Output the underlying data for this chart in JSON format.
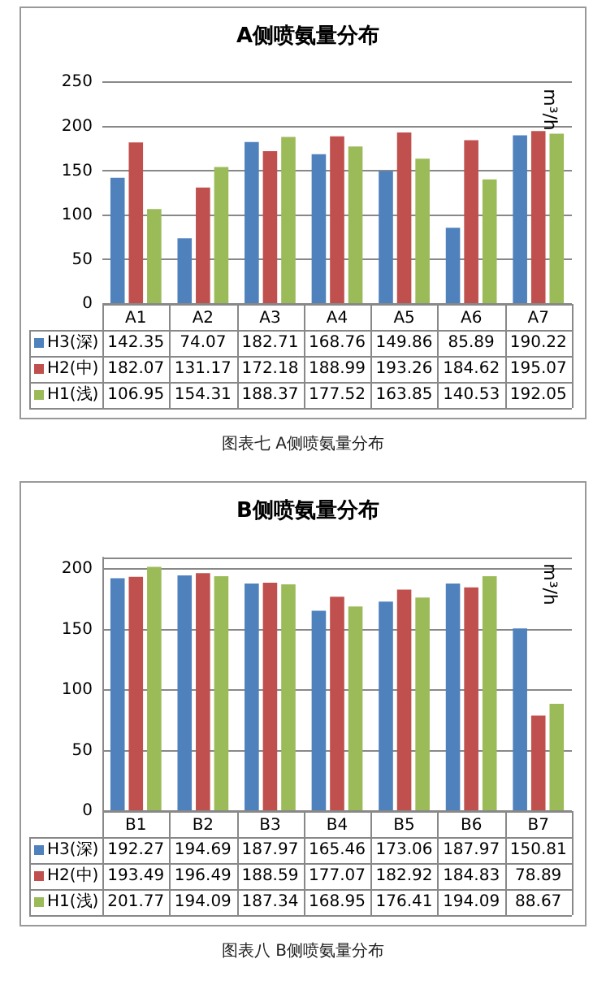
{
  "chart_data": [
    {
      "type": "bar",
      "title": "A侧喷氨量分布",
      "ylabel": "m³/h",
      "categories": [
        "A1",
        "A2",
        "A3",
        "A4",
        "A5",
        "A6",
        "A7"
      ],
      "series": [
        {
          "name": "H3(深)",
          "color": "#4f81bd",
          "values": [
            142.35,
            74.07,
            182.71,
            168.76,
            149.86,
            85.89,
            190.22
          ]
        },
        {
          "name": "H2(中)",
          "color": "#c0504d",
          "values": [
            182.07,
            131.17,
            172.18,
            188.99,
            193.26,
            184.62,
            195.07
          ]
        },
        {
          "name": "H1(浅)",
          "color": "#9bbb59",
          "values": [
            106.95,
            154.31,
            188.37,
            177.52,
            163.85,
            140.53,
            192.05
          ]
        }
      ],
      "ylim": [
        0,
        250
      ],
      "yticks": [
        0,
        50,
        100,
        150,
        200,
        250
      ],
      "grid": "y",
      "legend": "bottom",
      "data_labels": true,
      "annotations": [
        "图表七 A侧喷氨量分布"
      ]
    },
    {
      "type": "bar",
      "title": "B侧喷氨量分布",
      "ylabel": "m³/h",
      "categories": [
        "B1",
        "B2",
        "B3",
        "B4",
        "B5",
        "B6",
        "B7"
      ],
      "series": [
        {
          "name": "H3(深)",
          "color": "#4f81bd",
          "values": [
            192.27,
            194.69,
            187.97,
            165.46,
            173.06,
            187.97,
            150.81
          ]
        },
        {
          "name": "H2(中)",
          "color": "#c0504d",
          "values": [
            193.49,
            196.49,
            188.59,
            177.07,
            182.92,
            184.83,
            78.89
          ]
        },
        {
          "name": "H1(浅)",
          "color": "#9bbb59",
          "values": [
            201.77,
            194.09,
            187.34,
            168.95,
            176.41,
            194.09,
            88.67
          ]
        }
      ],
      "ylim": [
        0,
        210
      ],
      "yticks": [
        0,
        50,
        100,
        150,
        200
      ],
      "grid": "y",
      "legend": "bottom",
      "data_labels": true,
      "annotations": [
        "图表八 B侧喷氨量分布"
      ]
    }
  ]
}
